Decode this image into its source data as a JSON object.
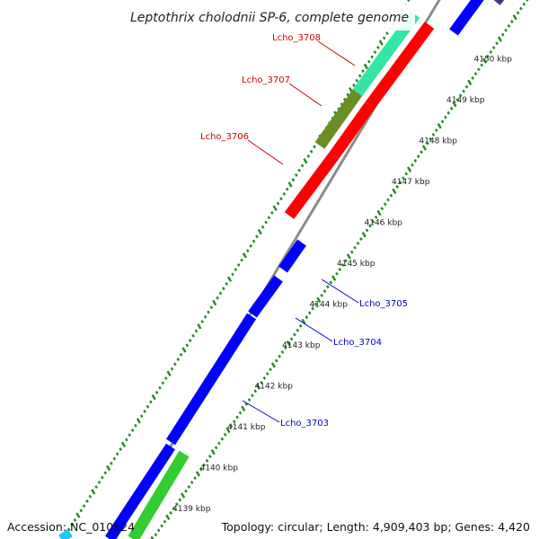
{
  "map": {
    "title": "Leptothrix cholodnii SP-6, complete genome",
    "accession": "Accession: NC_010524",
    "topology": "Topology: circular; Length: 4,909,403 bp; Genes: 4,420",
    "ticks": [
      {
        "label": "4139 kbp",
        "kbp": 4139
      },
      {
        "label": "4140 kbp",
        "kbp": 4140
      },
      {
        "label": "4141 kbp",
        "kbp": 4141
      },
      {
        "label": "4142 kbp",
        "kbp": 4142
      },
      {
        "label": "4143 kbp",
        "kbp": 4143
      },
      {
        "label": "4144 kbp",
        "kbp": 4144
      },
      {
        "label": "4145 kbp",
        "kbp": 4145
      },
      {
        "label": "4146 kbp",
        "kbp": 4146
      },
      {
        "label": "4147 kbp",
        "kbp": 4147
      },
      {
        "label": "4148 kbp",
        "kbp": 4148
      },
      {
        "label": "4149 kbp",
        "kbp": 4149
      },
      {
        "label": "4150 kbp",
        "kbp": 4150
      }
    ],
    "colors": {
      "backbone": "#8c8c8c",
      "tick_dots": "#1f8a1f",
      "forward_cds": "#ff0000",
      "reverse_cds": "#0000ff",
      "forward_label": "#cc0000",
      "reverse_label": "#0000cc",
      "green_feature": "#33cc33",
      "olive_feature": "#6b8e23",
      "teal_feature": "#33e6a6",
      "cyan_feature": "#1ec8f0",
      "navy_feature": "#3a3a8a"
    },
    "gene_labels": [
      {
        "id": "Lcho_3708",
        "text": "Lcho_3708",
        "strand": "forward"
      },
      {
        "id": "Lcho_3707",
        "text": "Lcho_3707",
        "strand": "forward"
      },
      {
        "id": "Lcho_3706",
        "text": "Lcho_3706",
        "strand": "forward"
      },
      {
        "id": "Lcho_3705",
        "text": "Lcho_3705",
        "strand": "reverse"
      },
      {
        "id": "Lcho_3704",
        "text": "Lcho_3704",
        "strand": "reverse"
      },
      {
        "id": "Lcho_3703",
        "text": "Lcho_3703",
        "strand": "reverse"
      }
    ]
  }
}
